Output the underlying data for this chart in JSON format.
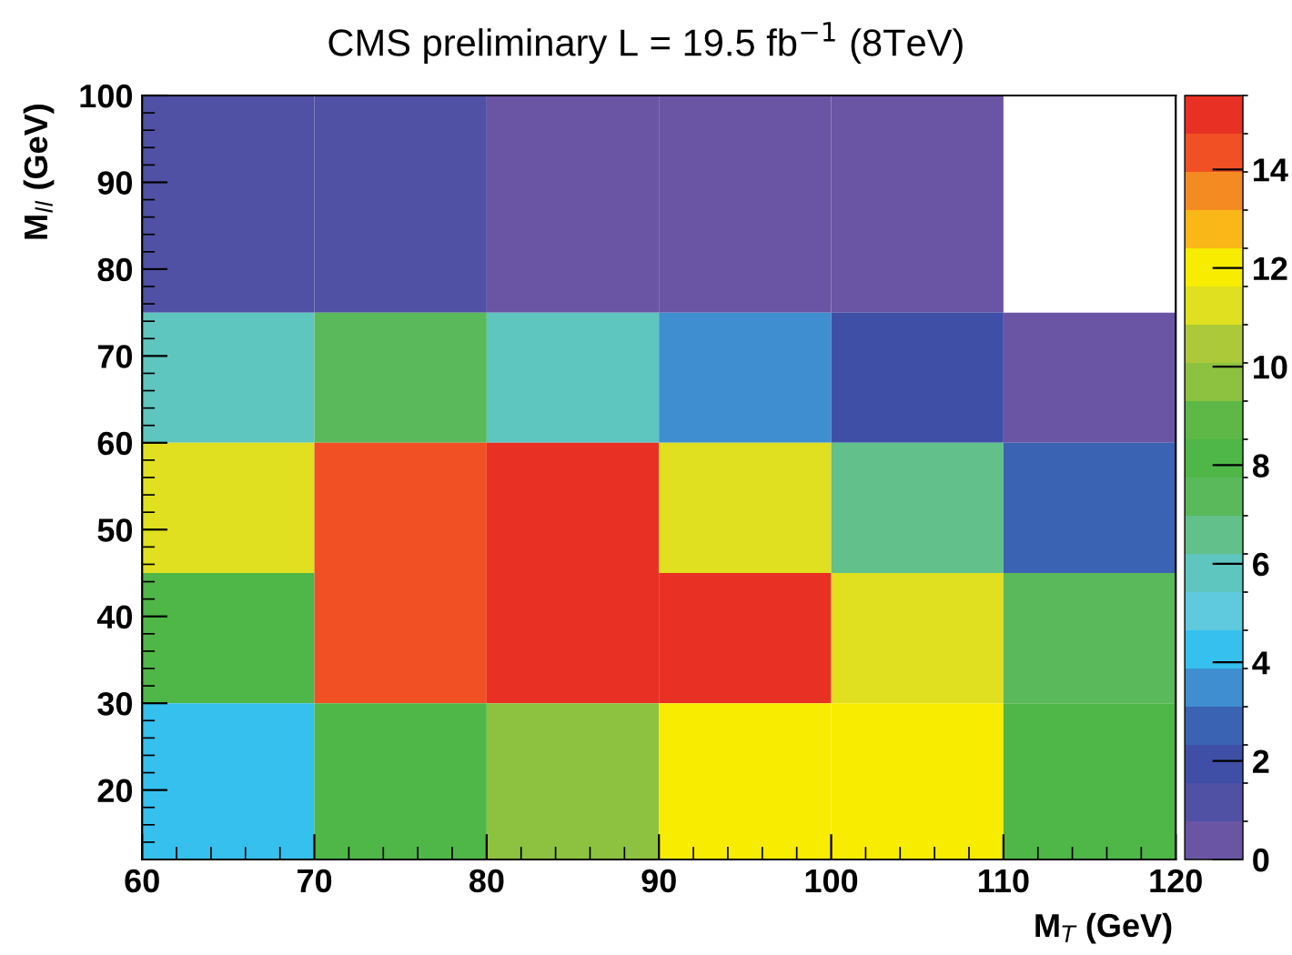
{
  "chart_data": {
    "type": "heatmap",
    "title": "CMS preliminary L = 19.5 fb$^{−1}$ (8TeV)",
    "xlabel": "M$_{T}$ (GeV)",
    "ylabel": "M$_{ll}$ (GeV)",
    "x": [
      65,
      75,
      85,
      95,
      105,
      115
    ],
    "y": [
      87.5,
      67.5,
      52.5,
      37.5,
      21
    ],
    "cells": [
      [
        1.2,
        1.2,
        0.4,
        0.4,
        0.4,
        null
      ],
      [
        5.8,
        7.4,
        5.8,
        3.5,
        1.9,
        0.4
      ],
      [
        11.2,
        14.3,
        15.1,
        11.2,
        6.6,
        2.7
      ],
      [
        8.1,
        14.3,
        15.1,
        15.1,
        11.2,
        7.4
      ],
      [
        4.3,
        8.1,
        9.7,
        12.0,
        12.0,
        8.1
      ]
    ],
    "colors": [
      "#6a55a4",
      "#5050a5",
      "#3f4fa6",
      "#3a64b3",
      "#3f8fd0",
      "#35c0ee",
      "#5fcade",
      "#5ec5bf",
      "#62c08a",
      "#5ab95a",
      "#4fb648",
      "#5db847",
      "#8cc240",
      "#acc93a",
      "#e0e020",
      "#f8ec00",
      "#fab718",
      "#f48b22",
      "#f05023",
      "#e83024"
    ],
    "xlim": [
      60,
      120
    ],
    "ylim": [
      12,
      100
    ],
    "xticks": [
      60,
      70,
      80,
      90,
      100,
      110,
      120
    ],
    "yticks": [
      20,
      30,
      40,
      50,
      60,
      70,
      80,
      90,
      100
    ],
    "clim": [
      0,
      15.5
    ],
    "cticks": [
      0,
      2,
      4,
      6,
      8,
      10,
      12,
      14
    ]
  }
}
